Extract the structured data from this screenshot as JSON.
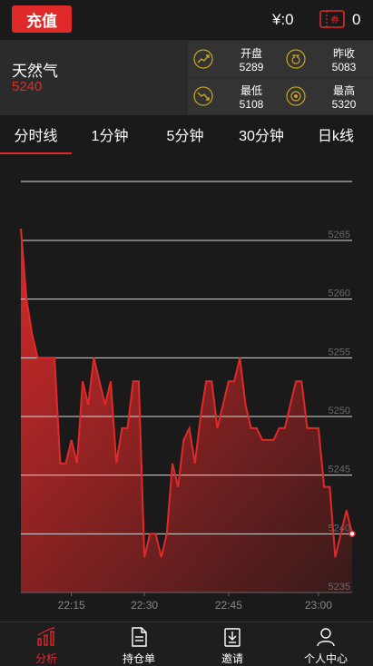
{
  "header": {
    "recharge_label": "充值",
    "balance": "¥:0",
    "ticket_count": "0"
  },
  "quote": {
    "name": "天然气",
    "price": "5240",
    "stats": [
      {
        "label": "开盘",
        "value": "5289",
        "icon": "trend-up-icon"
      },
      {
        "label": "昨收",
        "value": "5083",
        "icon": "money-bag-icon"
      },
      {
        "label": "最低",
        "value": "5108",
        "icon": "trend-down-icon"
      },
      {
        "label": "最高",
        "value": "5320",
        "icon": "coin-icon"
      }
    ]
  },
  "tabs": [
    {
      "label": "分时线",
      "active": true
    },
    {
      "label": "1分钟",
      "active": false
    },
    {
      "label": "5分钟",
      "active": false
    },
    {
      "label": "30分钟",
      "active": false
    },
    {
      "label": "日k线",
      "active": false
    }
  ],
  "chart_data": {
    "type": "area",
    "color": "#e02a2a",
    "ylim": [
      5235,
      5265
    ],
    "yticks": [
      5265,
      5260,
      5255,
      5250,
      5245,
      5240,
      5235
    ],
    "xtick_labels": [
      "22:15",
      "22:30",
      "22:45",
      "23:00"
    ],
    "xtick_index": [
      9,
      22,
      37,
      53
    ],
    "values": [
      5266,
      5260,
      5257,
      5255,
      5255,
      5255,
      5255,
      5246,
      5246,
      5248,
      5246,
      5253,
      5251,
      5255,
      5253,
      5251,
      5253,
      5246,
      5249,
      5249,
      5253,
      5253,
      5238,
      5240,
      5240,
      5238,
      5240,
      5246,
      5244,
      5248,
      5249,
      5246,
      5250,
      5253,
      5253,
      5249,
      5251,
      5253,
      5253,
      5255,
      5251,
      5249,
      5249,
      5248,
      5248,
      5248,
      5249,
      5249,
      5251,
      5253,
      5253,
      5249,
      5249,
      5249,
      5244,
      5244,
      5238,
      5240,
      5242,
      5240
    ]
  },
  "nav": [
    {
      "label": "分析",
      "icon": "chart-icon",
      "active": true
    },
    {
      "label": "持仓单",
      "icon": "document-icon",
      "active": false
    },
    {
      "label": "邀请",
      "icon": "gift-download-icon",
      "active": false
    },
    {
      "label": "个人中心",
      "icon": "user-icon",
      "active": false
    }
  ]
}
